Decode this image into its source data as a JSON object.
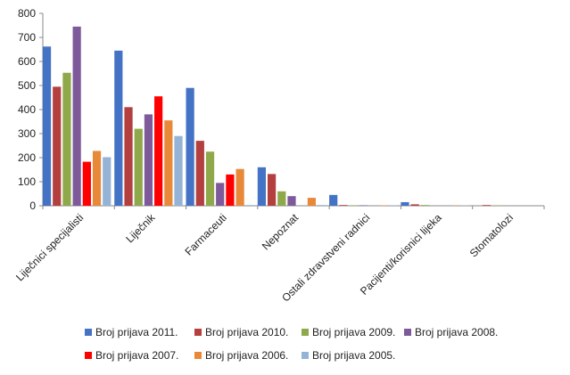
{
  "chart_data": {
    "type": "bar",
    "categories": [
      "Liječnici specijalisti",
      "Liječnik",
      "Farmaceuti",
      "Nepoznat",
      "Ostali zdravstveni radnici",
      "Pacijenti/korisnici lijeka",
      "Stomatolozi"
    ],
    "series": [
      {
        "name": "Broj prijava 2011.",
        "color": "#4472C4",
        "values": [
          662,
          645,
          490,
          160,
          45,
          15,
          0
        ]
      },
      {
        "name": "Broj prijava 2010.",
        "color": "#B3403E",
        "values": [
          495,
          410,
          270,
          132,
          3,
          6,
          3
        ]
      },
      {
        "name": "Broj prijava 2009.",
        "color": "#8EA84A",
        "values": [
          553,
          320,
          225,
          60,
          2,
          3,
          2
        ]
      },
      {
        "name": "Broj prijava 2008.",
        "color": "#7E5A9B",
        "values": [
          745,
          380,
          95,
          40,
          2,
          0,
          0
        ]
      },
      {
        "name": "Broj prijava 2007.",
        "color": "#FF0000",
        "values": [
          183,
          455,
          130,
          0,
          0,
          0,
          0
        ]
      },
      {
        "name": "Broj prijava 2006.",
        "color": "#E8893A",
        "values": [
          228,
          355,
          153,
          33,
          2,
          1,
          0
        ]
      },
      {
        "name": "Broj prijava 2005.",
        "color": "#95B3D7",
        "values": [
          202,
          290,
          3,
          3,
          1,
          1,
          0
        ]
      }
    ],
    "yticks": [
      "0",
      "100",
      "200",
      "300",
      "400",
      "500",
      "600",
      "700",
      "800"
    ],
    "ylim": [
      0,
      800
    ],
    "grid": false,
    "legend_position": "bottom"
  }
}
